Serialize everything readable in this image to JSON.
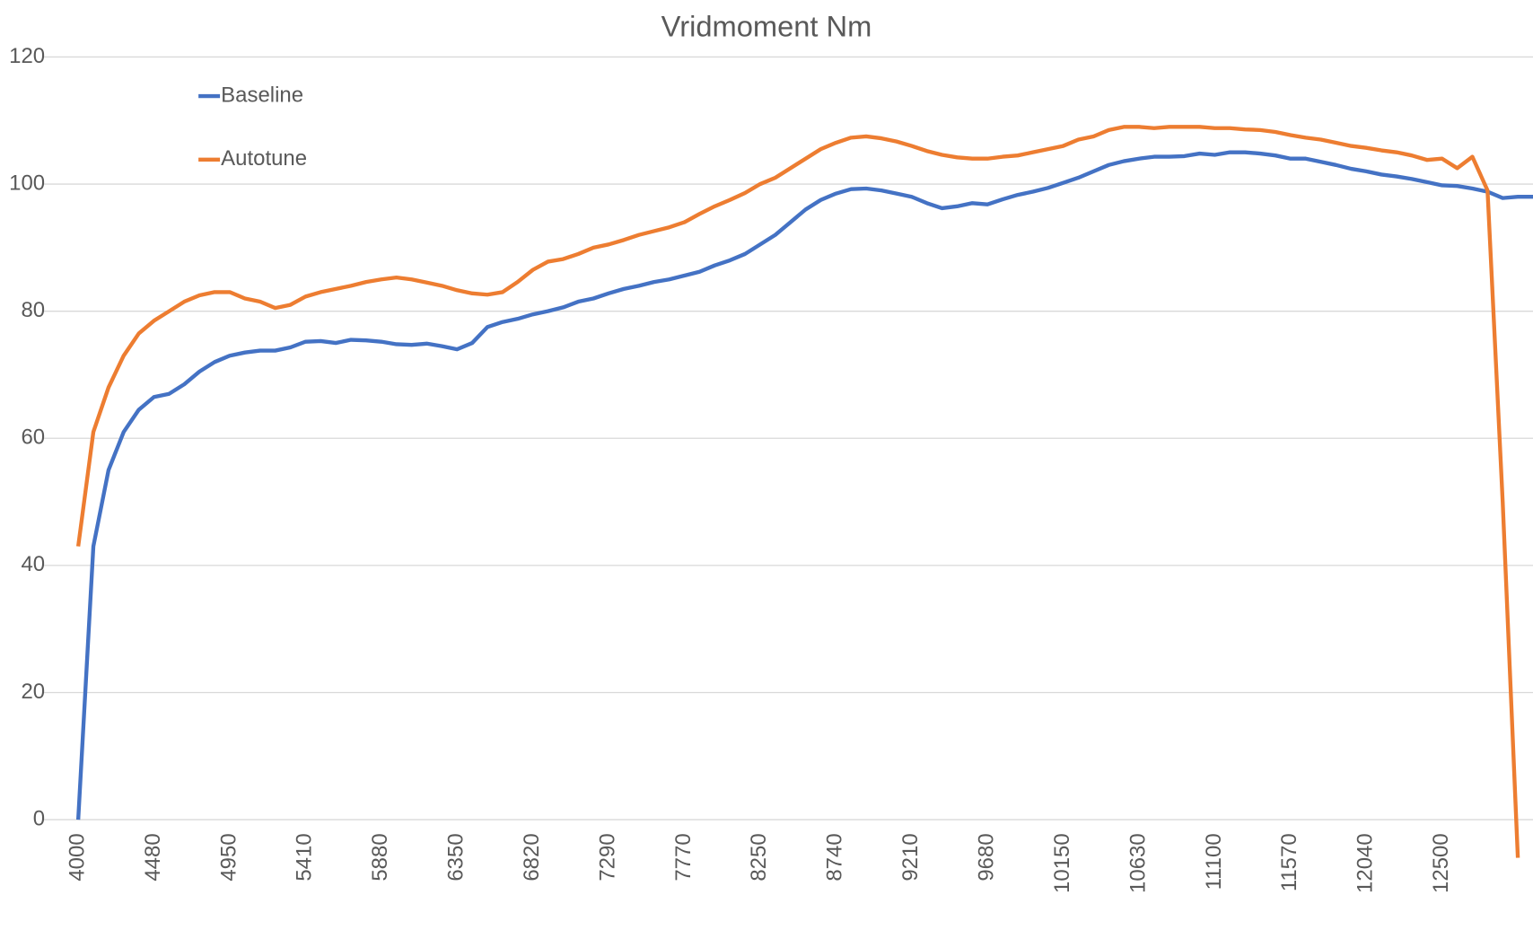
{
  "chart_data": {
    "type": "line",
    "title": "Vridmoment Nm",
    "categories": [
      "4000",
      null,
      null,
      null,
      null,
      "4480",
      null,
      null,
      null,
      null,
      "4950",
      null,
      null,
      null,
      null,
      "5410",
      null,
      null,
      null,
      null,
      "5880",
      null,
      null,
      null,
      null,
      "6350",
      null,
      null,
      null,
      null,
      "6820",
      null,
      null,
      null,
      null,
      "7290",
      null,
      null,
      null,
      null,
      "7770",
      null,
      null,
      null,
      null,
      "8250",
      null,
      null,
      null,
      null,
      "8740",
      null,
      null,
      null,
      null,
      "9210",
      null,
      null,
      null,
      null,
      "9680",
      null,
      null,
      null,
      null,
      "10150",
      null,
      null,
      null,
      null,
      "10630",
      null,
      null,
      null,
      null,
      "11100",
      null,
      null,
      null,
      null,
      "11570",
      null,
      null,
      null,
      null,
      "12040",
      null,
      null,
      null,
      null,
      "12500",
      null,
      null,
      null,
      null,
      null,
      null
    ],
    "series": [
      {
        "name": "Baseline",
        "color": "#4472c4",
        "values": [
          0,
          43,
          55,
          61,
          64.5,
          66.5,
          67,
          68.5,
          70.5,
          72,
          73,
          73.5,
          73.8,
          73.8,
          74.3,
          75.2,
          75.3,
          75,
          75.5,
          75.4,
          75.2,
          74.8,
          74.7,
          74.9,
          74.5,
          74,
          75,
          77.5,
          78.3,
          78.8,
          79.5,
          80,
          80.6,
          81.5,
          82,
          82.8,
          83.5,
          84,
          84.6,
          85,
          85.6,
          86.2,
          87.2,
          88,
          89,
          90.5,
          92,
          94,
          96,
          97.5,
          98.5,
          99.2,
          99.3,
          99,
          98.5,
          98,
          97,
          96.2,
          96.5,
          97,
          96.8,
          97.6,
          98.3,
          98.8,
          99.4,
          100.2,
          101,
          102,
          103,
          103.6,
          104,
          104.3,
          104.3,
          104.4,
          104.8,
          104.6,
          105,
          105,
          104.8,
          104.5,
          104,
          104,
          103.5,
          103,
          102.4,
          102,
          101.5,
          101.2,
          100.8,
          100.3,
          99.8,
          99.7,
          99.3,
          98.8,
          97.8,
          98,
          98
        ]
      },
      {
        "name": "Autotune",
        "color": "#ed7d31",
        "values": [
          43,
          61,
          68,
          73,
          76.5,
          78.5,
          80,
          81.5,
          82.5,
          83,
          83,
          82,
          81.5,
          80.5,
          81,
          82.3,
          83,
          83.5,
          84,
          84.6,
          85,
          85.3,
          85,
          84.5,
          84,
          83.3,
          82.8,
          82.6,
          83,
          84.6,
          86.5,
          87.8,
          88.2,
          89,
          90,
          90.5,
          91.2,
          92,
          92.6,
          93.2,
          94,
          95.3,
          96.5,
          97.5,
          98.6,
          100,
          101,
          102.5,
          104,
          105.5,
          106.5,
          107.3,
          107.5,
          107.2,
          106.7,
          106,
          105.2,
          104.6,
          104.2,
          104,
          104,
          104.3,
          104.5,
          105,
          105.5,
          106,
          107,
          107.5,
          108.5,
          109,
          109,
          108.8,
          109,
          109,
          109,
          108.8,
          108.8,
          108.6,
          108.5,
          108.2,
          107.7,
          107.3,
          107,
          106.5,
          106,
          105.7,
          105.3,
          105,
          104.5,
          103.8,
          104,
          102.5,
          104.3,
          99,
          50,
          -6,
          null
        ]
      }
    ],
    "ylim": [
      0,
      120
    ],
    "yticks": [
      0,
      20,
      40,
      60,
      80,
      100,
      120
    ],
    "grid": true,
    "legend": "top-left"
  }
}
